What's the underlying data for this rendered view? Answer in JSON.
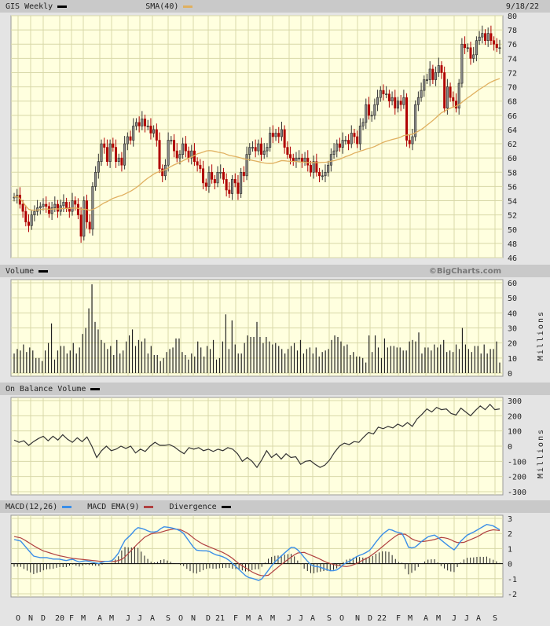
{
  "header": {
    "ticker_label": "GIS Weekly",
    "sma_label": "SMA(40)",
    "date": "9/18/22",
    "volume_label": "Volume",
    "watermark": "©BigCharts.com",
    "obv_label": "On Balance Volume",
    "macd_label": "MACD(12,26)",
    "macd_ema_label": "MACD EMA(9)",
    "divergence_label": "Divergence",
    "millions_label": "Millions"
  },
  "colors": {
    "up": "#8a8a8a",
    "down": "#b00000",
    "sma": "#e0b060",
    "macd": "#3a8ee8",
    "signal": "#b04040",
    "plot_bg": "#ffffdf",
    "grid": "#d8d8a8"
  },
  "chart_data": [
    {
      "type": "candlestick",
      "title": "GIS Weekly",
      "ylim": [
        46,
        80
      ],
      "yticks": [
        46,
        48,
        50,
        52,
        54,
        56,
        58,
        60,
        62,
        64,
        66,
        68,
        70,
        72,
        74,
        76,
        78,
        80
      ],
      "xticks": [
        "O",
        "N",
        "D",
        "20",
        "F",
        "M",
        "A",
        "M",
        "J",
        "J",
        "A",
        "S",
        "O",
        "N",
        "D",
        "21",
        "F",
        "M",
        "A",
        "M",
        "J",
        "J",
        "A",
        "S",
        "O",
        "N",
        "D",
        "22",
        "F",
        "M",
        "A",
        "M",
        "J",
        "J",
        "A",
        "S"
      ],
      "close": [
        54.5,
        54.8,
        53.5,
        52.5,
        51.0,
        50.5,
        52,
        52.5,
        53,
        53.2,
        53.5,
        53.2,
        52.2,
        53.0,
        53.5,
        52.5,
        53.3,
        53.8,
        53.0,
        52.5,
        54,
        53.5,
        52.0,
        49,
        54,
        51,
        50,
        56,
        58,
        59.5,
        62,
        61.5,
        59.5,
        62,
        61.5,
        59.5,
        60,
        59,
        62,
        63,
        62.5,
        64.5,
        65,
        64.5,
        65.5,
        64.5,
        64.5,
        63.5,
        64,
        62.5,
        58.5,
        57.5,
        59,
        62.5,
        62.5,
        61,
        60,
        60.5,
        62,
        61,
        60,
        61,
        59.5,
        59,
        58.5,
        56.5,
        56,
        58,
        57,
        56.5,
        58,
        58,
        57,
        55.5,
        55,
        57,
        56.5,
        55,
        58,
        57.5,
        60.5,
        61.5,
        61.5,
        61.0,
        62.0,
        60.5,
        61,
        61.5,
        63.5,
        63,
        63.5,
        63,
        64,
        61.5,
        60.5,
        60,
        59.5,
        60,
        60.0,
        59.5,
        60,
        59,
        58,
        59.5,
        58,
        57.5,
        57.5,
        58,
        59,
        60.5,
        61,
        62,
        61.5,
        62.5,
        62.5,
        62,
        63.5,
        63,
        62,
        64.5,
        65,
        67.5,
        66,
        66,
        67.5,
        68.5,
        69.5,
        69,
        69,
        68,
        68.5,
        67,
        68,
        67.5,
        68.5,
        62.5,
        62,
        63,
        67.5,
        68.5,
        69.5,
        71,
        71,
        72.5,
        71,
        72,
        73,
        72,
        67,
        70,
        68.5,
        68,
        67,
        70.5,
        76,
        75.5,
        75.5,
        74,
        74.5,
        76.5,
        77,
        77.5,
        76.5,
        77.5,
        76.5,
        76,
        75.5,
        75.5
      ],
      "sma_period": 40
    },
    {
      "type": "bar",
      "title": "Volume",
      "ylabel": "Millions",
      "ylim": [
        0,
        60
      ],
      "yticks": [
        0,
        10,
        20,
        30,
        40,
        50,
        60
      ],
      "values": [
        13,
        16,
        15,
        19,
        14,
        17,
        15,
        10,
        10,
        8,
        15,
        20,
        33,
        9,
        15,
        18,
        18,
        13,
        15,
        20,
        13,
        17,
        26,
        30,
        43,
        59,
        34,
        29,
        22,
        20,
        16,
        18,
        12,
        22,
        13,
        15,
        21,
        25,
        29,
        18,
        22,
        21,
        23,
        13,
        18,
        12,
        12,
        8,
        10,
        14,
        16,
        17,
        23,
        23,
        14,
        12,
        9,
        13,
        11,
        21,
        17,
        11,
        18,
        16,
        22,
        9,
        10,
        21,
        39,
        16,
        35,
        19,
        13,
        13,
        20,
        25,
        24,
        24,
        34,
        24,
        20,
        24,
        21,
        19,
        20,
        18,
        16,
        13,
        16,
        18,
        20,
        15,
        22,
        13,
        16,
        17,
        13,
        17,
        11,
        14,
        15,
        16,
        22,
        25,
        24,
        21,
        18,
        19,
        12,
        14,
        11,
        11,
        10,
        7,
        25,
        14,
        25,
        17,
        10,
        23,
        17,
        18,
        18,
        17,
        17,
        15,
        15,
        21,
        22,
        21,
        27,
        13,
        17,
        17,
        15,
        19,
        17,
        19,
        22,
        14,
        15,
        14,
        19,
        16,
        30,
        19,
        16,
        14,
        18,
        18,
        13,
        19,
        13,
        16,
        16,
        21,
        7
      ]
    },
    {
      "type": "line",
      "title": "On Balance Volume",
      "ylabel": "Millions",
      "ylim": [
        -300,
        300
      ],
      "yticks": [
        -300,
        -200,
        -100,
        0,
        100,
        200,
        300
      ],
      "values": [
        40,
        25,
        35,
        5,
        30,
        50,
        65,
        35,
        65,
        40,
        75,
        45,
        25,
        55,
        30,
        60,
        0,
        -75,
        -30,
        0,
        -30,
        -20,
        0,
        -15,
        0,
        -45,
        -20,
        -35,
        0,
        25,
        5,
        5,
        10,
        -5,
        -30,
        -50,
        -10,
        -20,
        -10,
        -30,
        -20,
        -35,
        -20,
        -30,
        -10,
        -20,
        -50,
        -100,
        -75,
        -100,
        -140,
        -90,
        -30,
        -75,
        -50,
        -85,
        -50,
        -75,
        -70,
        -120,
        -100,
        -95,
        -120,
        -140,
        -125,
        -90,
        -40,
        0,
        20,
        10,
        30,
        25,
        60,
        90,
        80,
        125,
        115,
        130,
        120,
        145,
        130,
        155,
        130,
        180,
        210,
        245,
        225,
        255,
        240,
        245,
        215,
        205,
        250,
        225,
        200,
        235,
        265,
        240,
        275,
        240,
        245
      ]
    },
    {
      "type": "line",
      "title": "MACD",
      "ylim": [
        -2,
        3
      ],
      "yticks": [
        -2,
        -1,
        0,
        1,
        2,
        3
      ],
      "series": [
        {
          "name": "MACD(12,26)",
          "values": [
            1.6,
            1.5,
            1.0,
            0.5,
            0.4,
            0.4,
            0.3,
            0.3,
            0.2,
            0.3,
            0.1,
            0.2,
            0.1,
            0.0,
            0.15,
            0.15,
            0.6,
            1.5,
            1.9,
            2.4,
            2.3,
            2.1,
            2.1,
            2.45,
            2.4,
            2.3,
            2.1,
            1.5,
            0.9,
            0.85,
            0.85,
            0.6,
            0.5,
            0.3,
            -0.1,
            -0.5,
            -0.9,
            -1.0,
            -1.15,
            -0.6,
            0.0,
            0.4,
            0.8,
            1.15,
            0.85,
            0.3,
            -0.15,
            -0.2,
            -0.35,
            -0.5,
            -0.4,
            0.0,
            0.2,
            0.5,
            0.65,
            0.9,
            1.5,
            2.0,
            2.3,
            2.1,
            2.0,
            1.0,
            1.1,
            1.5,
            1.8,
            1.9,
            1.55,
            1.2,
            0.9,
            1.5,
            1.9,
            2.1,
            2.35,
            2.6,
            2.5,
            2.25
          ]
        },
        {
          "name": "MACD EMA(9)",
          "values": [
            1.8,
            1.7,
            1.4,
            1.1,
            0.85,
            0.7,
            0.55,
            0.45,
            0.35,
            0.3,
            0.25,
            0.2,
            0.15,
            0.15,
            0.15,
            0.3,
            0.8,
            1.3,
            1.75,
            2.0,
            2.05,
            2.2,
            2.3,
            2.25,
            2.0,
            1.6,
            1.3,
            1.1,
            0.9,
            0.7,
            0.4,
            0.0,
            -0.3,
            -0.6,
            -0.8,
            -0.8,
            -0.4,
            0.0,
            0.35,
            0.7,
            0.75,
            0.55,
            0.35,
            0.1,
            -0.05,
            -0.15,
            -0.2,
            -0.05,
            0.2,
            0.45,
            0.8,
            1.2,
            1.6,
            1.95,
            1.95,
            1.6,
            1.45,
            1.5,
            1.6,
            1.75,
            1.65,
            1.4,
            1.4,
            1.6,
            1.8,
            2.1,
            2.25,
            2.2
          ]
        },
        {
          "name": "Divergence",
          "derived": "MACD minus MACD EMA(9)"
        }
      ]
    }
  ]
}
